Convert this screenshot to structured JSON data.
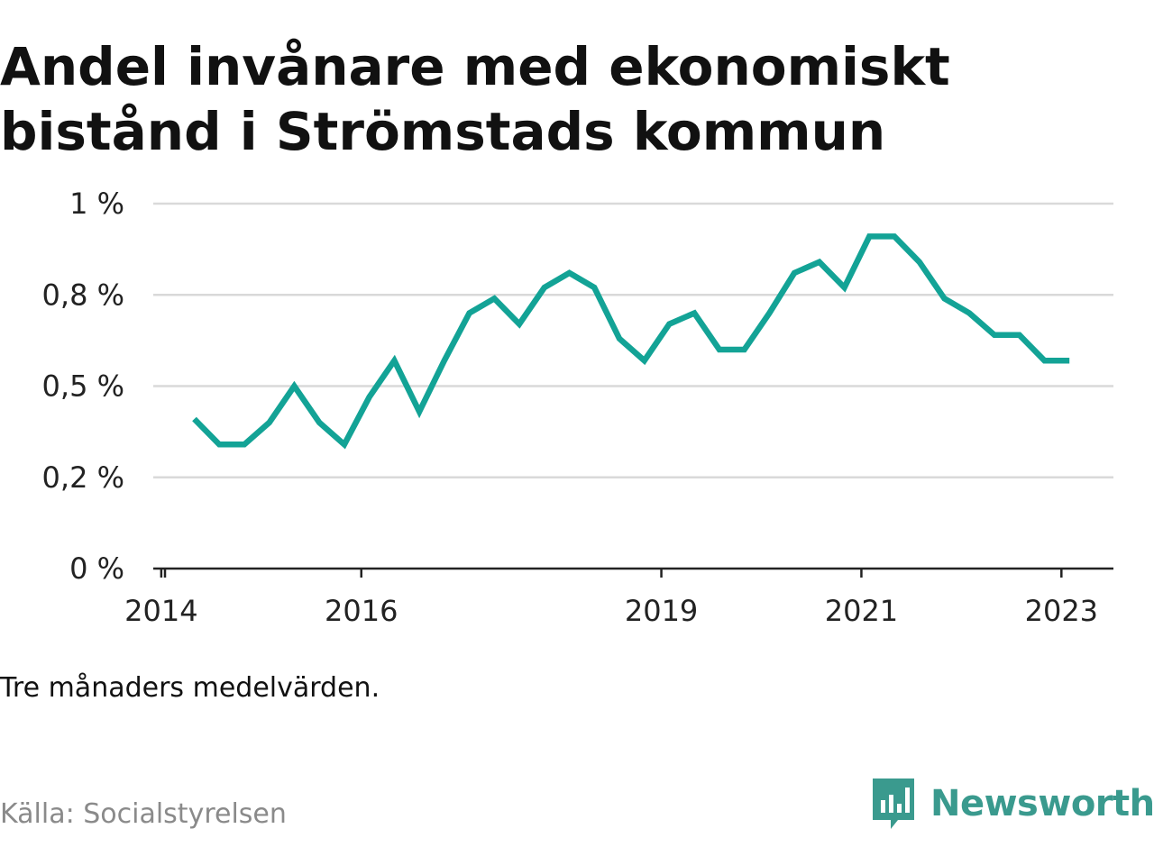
{
  "title": "Andel invånare med ekonomiskt bistånd i Strömstads kommun",
  "note": "Tre månaders medelvärden.",
  "source": "Källa: Socialstyrelsen",
  "brand": {
    "name": "Newsworthy",
    "icon": "newsworthy-logo-icon",
    "color": "#3a9a8e"
  },
  "colors": {
    "line": "#13a396",
    "grid": "#d9d9d9",
    "axis": "#222222"
  },
  "chart_data": {
    "type": "line",
    "title": "Andel invånare med ekonomiskt bistånd i Strömstads kommun",
    "xlabel": "",
    "ylabel": "",
    "y_ticks": [
      {
        "value": 0,
        "label": "0 %"
      },
      {
        "value": 0.25,
        "label": "0,2 %"
      },
      {
        "value": 0.5,
        "label": "0,5 %"
      },
      {
        "value": 0.75,
        "label": "0,8 %"
      },
      {
        "value": 1,
        "label": "1 %"
      }
    ],
    "x_ticks": [
      {
        "value": 2014.0,
        "label": "2014"
      },
      {
        "value": 2016.0,
        "label": "2016"
      },
      {
        "value": 2019.0,
        "label": "2019"
      },
      {
        "value": 2021.0,
        "label": "2021"
      },
      {
        "value": 2023.0,
        "label": "2023"
      }
    ],
    "xlim": [
      2013.92,
      2023.52
    ],
    "ylim": [
      0,
      1
    ],
    "grid": true,
    "series": [
      {
        "x": [
          2014.33,
          2014.58,
          2014.83,
          2015.08,
          2015.33,
          2015.58,
          2015.83,
          2016.08,
          2016.33,
          2016.58,
          2016.83,
          2017.08,
          2017.33,
          2017.58,
          2017.83,
          2018.08,
          2018.33,
          2018.58,
          2018.83,
          2019.08,
          2019.33,
          2019.58,
          2019.83,
          2020.08,
          2020.33,
          2020.58,
          2020.83,
          2021.08,
          2021.33,
          2021.58,
          2021.83,
          2022.08,
          2022.33,
          2022.58,
          2022.83,
          2023.08
        ],
        "values": [
          0.41,
          0.34,
          0.34,
          0.4,
          0.5,
          0.4,
          0.34,
          0.47,
          0.57,
          0.43,
          0.57,
          0.7,
          0.74,
          0.67,
          0.77,
          0.81,
          0.77,
          0.63,
          0.57,
          0.67,
          0.7,
          0.6,
          0.6,
          0.7,
          0.81,
          0.84,
          0.77,
          0.91,
          0.91,
          0.84,
          0.74,
          0.7,
          0.64,
          0.64,
          0.57,
          0.57
        ]
      }
    ]
  }
}
